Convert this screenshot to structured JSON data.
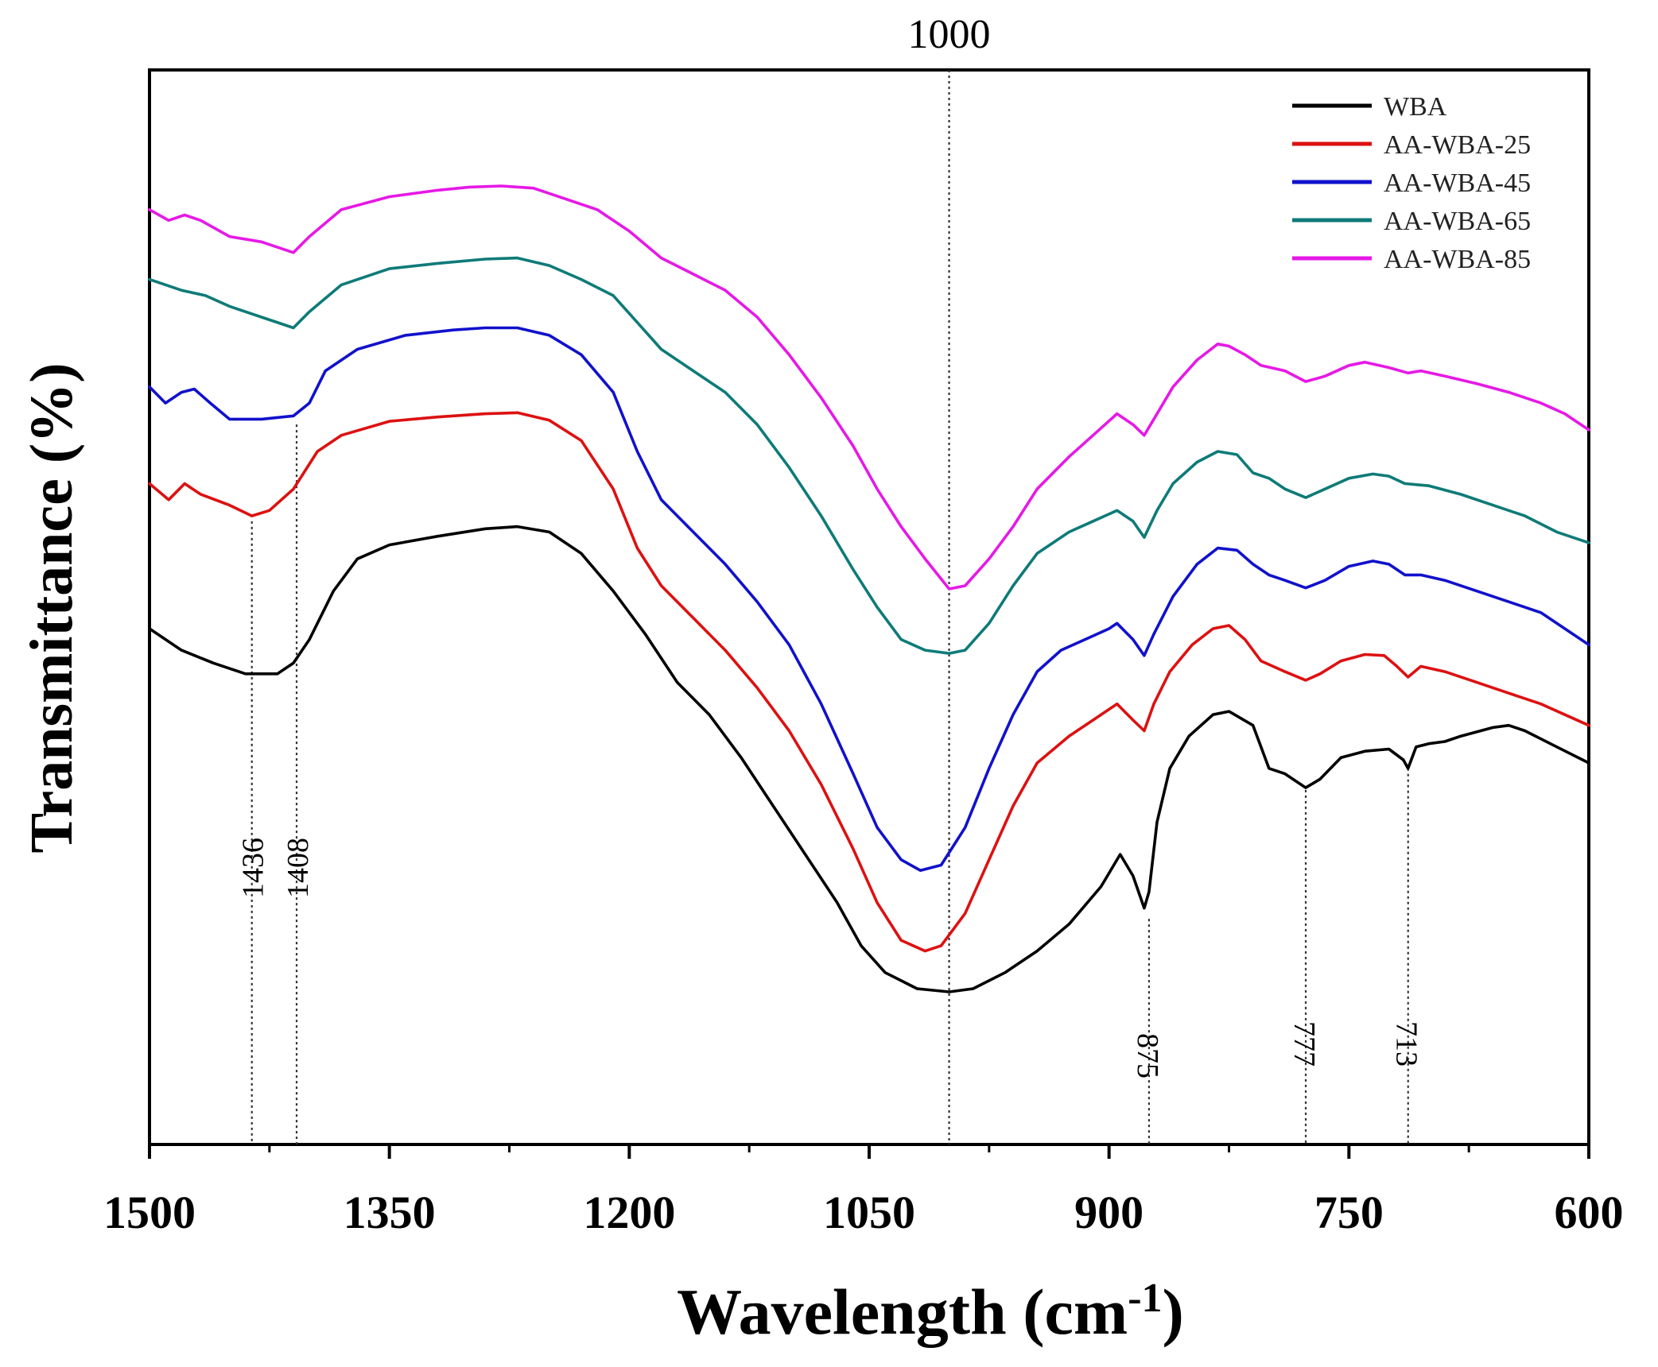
{
  "chart_data": {
    "type": "line",
    "title": "",
    "xlabel": "Wavelength",
    "xlabel_unit_base": "cm",
    "xlabel_unit_exp": "-1",
    "ylabel": "Transmittance (%)",
    "xlim": [
      1500,
      600
    ],
    "ylim": [
      0,
      100
    ],
    "x_ticks": [
      1500,
      1350,
      1200,
      1050,
      900,
      750,
      600
    ],
    "x_tick_labels": [
      "1500",
      "1350",
      "1200",
      "1050",
      "900",
      "750",
      "600"
    ],
    "grid": false,
    "legend_position": "top-right",
    "peak_markers": [
      {
        "x": 1436,
        "label": "1436",
        "ystart": 58
      },
      {
        "x": 1408,
        "label": "1408",
        "ystart": 67
      },
      {
        "x": 1000,
        "label": "1000",
        "ystart": 101
      },
      {
        "x": 875,
        "label": "875",
        "ystart": 21
      },
      {
        "x": 777,
        "label": "777",
        "ystart": 33
      },
      {
        "x": 713,
        "label": "713",
        "ystart": 35
      }
    ],
    "series": [
      {
        "name": "WBA",
        "color": "#000000",
        "points": [
          [
            1500,
            48.0
          ],
          [
            1480,
            46.0
          ],
          [
            1460,
            44.8
          ],
          [
            1440,
            43.8
          ],
          [
            1420,
            43.8
          ],
          [
            1410,
            44.8
          ],
          [
            1400,
            47.0
          ],
          [
            1385,
            51.5
          ],
          [
            1370,
            54.5
          ],
          [
            1350,
            55.8
          ],
          [
            1320,
            56.6
          ],
          [
            1290,
            57.3
          ],
          [
            1270,
            57.5
          ],
          [
            1250,
            57.0
          ],
          [
            1230,
            55.0
          ],
          [
            1210,
            51.5
          ],
          [
            1190,
            47.5
          ],
          [
            1170,
            43.0
          ],
          [
            1150,
            40.0
          ],
          [
            1130,
            36.0
          ],
          [
            1110,
            31.5
          ],
          [
            1090,
            27.0
          ],
          [
            1070,
            22.5
          ],
          [
            1055,
            18.5
          ],
          [
            1040,
            16.0
          ],
          [
            1020,
            14.5
          ],
          [
            1000,
            14.2
          ],
          [
            985,
            14.5
          ],
          [
            965,
            16.0
          ],
          [
            945,
            18.0
          ],
          [
            925,
            20.5
          ],
          [
            905,
            24.0
          ],
          [
            893,
            27.0
          ],
          [
            885,
            25.0
          ],
          [
            878,
            22.0
          ],
          [
            875,
            23.5
          ],
          [
            870,
            30.0
          ],
          [
            862,
            35.0
          ],
          [
            850,
            38.0
          ],
          [
            835,
            40.0
          ],
          [
            825,
            40.3
          ],
          [
            810,
            39.0
          ],
          [
            800,
            35.0
          ],
          [
            790,
            34.5
          ],
          [
            777,
            33.2
          ],
          [
            768,
            34.0
          ],
          [
            755,
            36.0
          ],
          [
            740,
            36.6
          ],
          [
            725,
            36.8
          ],
          [
            716,
            35.8
          ],
          [
            713,
            35.0
          ],
          [
            708,
            37.0
          ],
          [
            700,
            37.3
          ],
          [
            690,
            37.5
          ],
          [
            680,
            38.0
          ],
          [
            660,
            38.8
          ],
          [
            650,
            39.0
          ],
          [
            640,
            38.5
          ],
          [
            620,
            37.0
          ],
          [
            600,
            35.5
          ]
        ]
      },
      {
        "name": "AA-WBA-25",
        "color": "#dd1111",
        "points": [
          [
            1500,
            61.5
          ],
          [
            1488,
            60.0
          ],
          [
            1478,
            61.5
          ],
          [
            1468,
            60.5
          ],
          [
            1450,
            59.5
          ],
          [
            1436,
            58.5
          ],
          [
            1425,
            59.0
          ],
          [
            1410,
            61.0
          ],
          [
            1395,
            64.5
          ],
          [
            1380,
            66.0
          ],
          [
            1350,
            67.3
          ],
          [
            1320,
            67.7
          ],
          [
            1290,
            68.0
          ],
          [
            1270,
            68.1
          ],
          [
            1250,
            67.4
          ],
          [
            1230,
            65.5
          ],
          [
            1210,
            61.0
          ],
          [
            1195,
            55.5
          ],
          [
            1180,
            52.0
          ],
          [
            1160,
            49.0
          ],
          [
            1140,
            46.0
          ],
          [
            1120,
            42.5
          ],
          [
            1100,
            38.5
          ],
          [
            1080,
            33.5
          ],
          [
            1060,
            27.5
          ],
          [
            1045,
            22.5
          ],
          [
            1030,
            19.0
          ],
          [
            1015,
            18.0
          ],
          [
            1005,
            18.5
          ],
          [
            990,
            21.5
          ],
          [
            975,
            26.5
          ],
          [
            960,
            31.5
          ],
          [
            945,
            35.5
          ],
          [
            925,
            38.0
          ],
          [
            910,
            39.5
          ],
          [
            895,
            41.0
          ],
          [
            885,
            39.5
          ],
          [
            878,
            38.5
          ],
          [
            872,
            41.0
          ],
          [
            862,
            44.0
          ],
          [
            848,
            46.5
          ],
          [
            835,
            48.0
          ],
          [
            825,
            48.3
          ],
          [
            815,
            47.0
          ],
          [
            805,
            45.0
          ],
          [
            790,
            44.0
          ],
          [
            777,
            43.2
          ],
          [
            768,
            43.8
          ],
          [
            755,
            45.0
          ],
          [
            740,
            45.6
          ],
          [
            728,
            45.5
          ],
          [
            720,
            44.5
          ],
          [
            713,
            43.5
          ],
          [
            705,
            44.5
          ],
          [
            690,
            44.0
          ],
          [
            670,
            43.0
          ],
          [
            650,
            42.0
          ],
          [
            630,
            41.0
          ],
          [
            615,
            40.0
          ],
          [
            600,
            39.0
          ]
        ]
      },
      {
        "name": "AA-WBA-45",
        "color": "#1111cc",
        "points": [
          [
            1500,
            70.5
          ],
          [
            1490,
            69.0
          ],
          [
            1480,
            70.0
          ],
          [
            1472,
            70.3
          ],
          [
            1462,
            69.0
          ],
          [
            1450,
            67.5
          ],
          [
            1430,
            67.5
          ],
          [
            1410,
            67.8
          ],
          [
            1400,
            69.0
          ],
          [
            1390,
            72.0
          ],
          [
            1370,
            74.0
          ],
          [
            1340,
            75.3
          ],
          [
            1310,
            75.8
          ],
          [
            1290,
            76.0
          ],
          [
            1270,
            76.0
          ],
          [
            1250,
            75.3
          ],
          [
            1230,
            73.5
          ],
          [
            1210,
            70.0
          ],
          [
            1195,
            64.5
          ],
          [
            1180,
            60.0
          ],
          [
            1160,
            57.0
          ],
          [
            1140,
            54.0
          ],
          [
            1120,
            50.5
          ],
          [
            1100,
            46.5
          ],
          [
            1080,
            41.0
          ],
          [
            1060,
            34.5
          ],
          [
            1045,
            29.5
          ],
          [
            1030,
            26.5
          ],
          [
            1018,
            25.5
          ],
          [
            1005,
            26.0
          ],
          [
            990,
            29.5
          ],
          [
            975,
            35.0
          ],
          [
            960,
            40.0
          ],
          [
            945,
            44.0
          ],
          [
            930,
            46.0
          ],
          [
            915,
            47.0
          ],
          [
            900,
            48.0
          ],
          [
            895,
            48.5
          ],
          [
            885,
            47.0
          ],
          [
            878,
            45.5
          ],
          [
            872,
            47.5
          ],
          [
            860,
            51.0
          ],
          [
            845,
            54.0
          ],
          [
            832,
            55.5
          ],
          [
            820,
            55.3
          ],
          [
            810,
            54.0
          ],
          [
            800,
            53.0
          ],
          [
            790,
            52.5
          ],
          [
            777,
            51.8
          ],
          [
            765,
            52.5
          ],
          [
            750,
            53.8
          ],
          [
            735,
            54.3
          ],
          [
            725,
            54.0
          ],
          [
            715,
            53.0
          ],
          [
            705,
            53.0
          ],
          [
            690,
            52.5
          ],
          [
            670,
            51.5
          ],
          [
            650,
            50.5
          ],
          [
            630,
            49.5
          ],
          [
            615,
            48.0
          ],
          [
            600,
            46.5
          ]
        ]
      },
      {
        "name": "AA-WBA-65",
        "color": "#0e7b78",
        "points": [
          [
            1500,
            80.5
          ],
          [
            1480,
            79.5
          ],
          [
            1465,
            79.0
          ],
          [
            1450,
            78.0
          ],
          [
            1430,
            77.0
          ],
          [
            1410,
            76.0
          ],
          [
            1400,
            77.5
          ],
          [
            1380,
            80.0
          ],
          [
            1350,
            81.5
          ],
          [
            1320,
            82.0
          ],
          [
            1290,
            82.4
          ],
          [
            1270,
            82.5
          ],
          [
            1250,
            81.8
          ],
          [
            1230,
            80.5
          ],
          [
            1210,
            79.0
          ],
          [
            1195,
            76.5
          ],
          [
            1180,
            74.0
          ],
          [
            1160,
            72.0
          ],
          [
            1140,
            70.0
          ],
          [
            1120,
            67.0
          ],
          [
            1100,
            63.0
          ],
          [
            1080,
            58.5
          ],
          [
            1060,
            53.5
          ],
          [
            1045,
            50.0
          ],
          [
            1030,
            47.0
          ],
          [
            1015,
            46.0
          ],
          [
            1000,
            45.7
          ],
          [
            990,
            46.0
          ],
          [
            975,
            48.5
          ],
          [
            960,
            52.0
          ],
          [
            945,
            55.0
          ],
          [
            925,
            57.0
          ],
          [
            910,
            58.0
          ],
          [
            895,
            59.0
          ],
          [
            885,
            58.0
          ],
          [
            878,
            56.5
          ],
          [
            870,
            59.0
          ],
          [
            860,
            61.5
          ],
          [
            845,
            63.5
          ],
          [
            832,
            64.5
          ],
          [
            820,
            64.2
          ],
          [
            810,
            62.5
          ],
          [
            800,
            62.0
          ],
          [
            790,
            61.0
          ],
          [
            777,
            60.2
          ],
          [
            765,
            61.0
          ],
          [
            750,
            62.0
          ],
          [
            735,
            62.4
          ],
          [
            725,
            62.2
          ],
          [
            715,
            61.5
          ],
          [
            700,
            61.3
          ],
          [
            680,
            60.5
          ],
          [
            660,
            59.5
          ],
          [
            640,
            58.5
          ],
          [
            620,
            57.0
          ],
          [
            600,
            56.0
          ]
        ]
      },
      {
        "name": "AA-WBA-85",
        "color": "#e619e6",
        "points": [
          [
            1500,
            87.0
          ],
          [
            1488,
            86.0
          ],
          [
            1478,
            86.5
          ],
          [
            1468,
            86.0
          ],
          [
            1450,
            84.5
          ],
          [
            1430,
            84.0
          ],
          [
            1410,
            83.0
          ],
          [
            1400,
            84.5
          ],
          [
            1380,
            87.0
          ],
          [
            1350,
            88.2
          ],
          [
            1320,
            88.8
          ],
          [
            1300,
            89.1
          ],
          [
            1280,
            89.2
          ],
          [
            1260,
            89.0
          ],
          [
            1240,
            88.0
          ],
          [
            1220,
            87.0
          ],
          [
            1200,
            85.0
          ],
          [
            1180,
            82.5
          ],
          [
            1160,
            81.0
          ],
          [
            1140,
            79.5
          ],
          [
            1120,
            77.0
          ],
          [
            1100,
            73.5
          ],
          [
            1080,
            69.5
          ],
          [
            1060,
            65.0
          ],
          [
            1045,
            61.0
          ],
          [
            1030,
            57.5
          ],
          [
            1015,
            54.5
          ],
          [
            1000,
            51.7
          ],
          [
            990,
            52.0
          ],
          [
            975,
            54.5
          ],
          [
            960,
            57.5
          ],
          [
            945,
            61.0
          ],
          [
            925,
            64.0
          ],
          [
            910,
            66.0
          ],
          [
            895,
            68.0
          ],
          [
            885,
            67.0
          ],
          [
            878,
            66.0
          ],
          [
            872,
            67.5
          ],
          [
            860,
            70.5
          ],
          [
            845,
            73.0
          ],
          [
            832,
            74.5
          ],
          [
            825,
            74.3
          ],
          [
            815,
            73.5
          ],
          [
            805,
            72.5
          ],
          [
            790,
            72.0
          ],
          [
            777,
            71.0
          ],
          [
            765,
            71.5
          ],
          [
            750,
            72.5
          ],
          [
            740,
            72.8
          ],
          [
            725,
            72.3
          ],
          [
            713,
            71.8
          ],
          [
            705,
            72.0
          ],
          [
            690,
            71.5
          ],
          [
            670,
            70.8
          ],
          [
            650,
            70.0
          ],
          [
            630,
            69.0
          ],
          [
            615,
            68.0
          ],
          [
            600,
            66.5
          ]
        ]
      }
    ]
  }
}
